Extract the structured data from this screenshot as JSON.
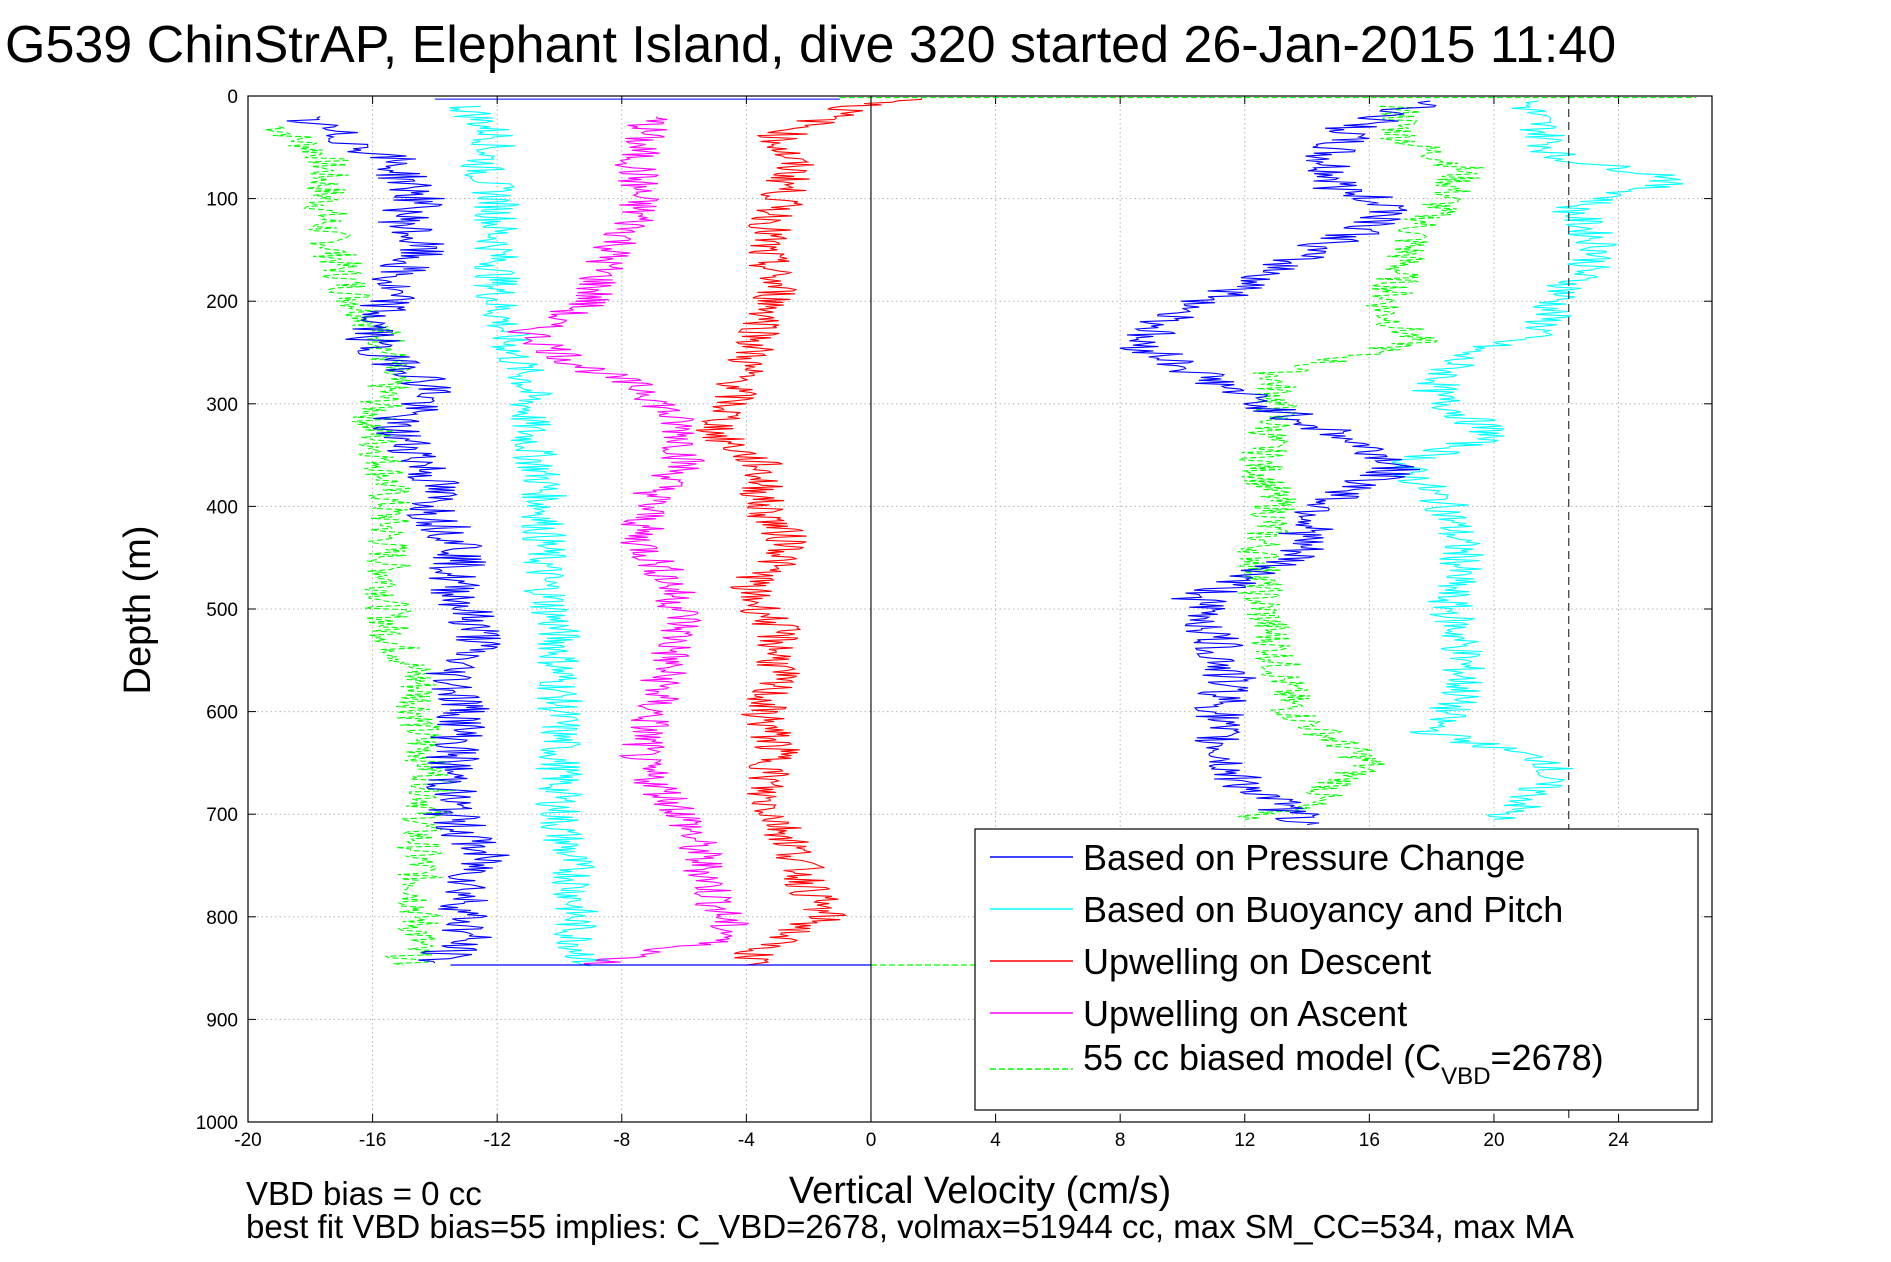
{
  "chart_data": {
    "type": "line",
    "title": "G539 ChinStrAP, Elephant Island, dive 320 started 26-Jan-2015 11:40",
    "xlabel": "Vertical Velocity (cm/s)",
    "ylabel": "Depth (m)",
    "xlim": [
      -20,
      27
    ],
    "ylim": [
      0,
      1000
    ],
    "y_reversed": true,
    "grid": true,
    "x_ticks": [
      "-20",
      "-16",
      "-12",
      "-8",
      "-4",
      "0",
      "4",
      "8",
      "12",
      "16",
      "20",
      "24"
    ],
    "y_ticks": [
      "0",
      "100",
      "200",
      "300",
      "400",
      "500",
      "600",
      "700",
      "800",
      "900",
      "1000"
    ],
    "legend_position": "bottom-right",
    "legend_sub_prefix": "55 cc biased model (C",
    "legend_sub_script": "VBD",
    "legend_sub_suffix": "=2678)",
    "reference_lines": {
      "solid_x": 0,
      "dashed_x": 22.4
    },
    "footer_line1": "VBD bias = 0 cc",
    "footer_line2": "best fit VBD bias=55 implies: C_VBD=2678, volmax=51944 cc, max SM_CC=534, max MA",
    "series": [
      {
        "name": "Based on Pressure Change",
        "color": "#0000ff",
        "style": "solid",
        "descent": [
          [
            -18.5,
            20
          ],
          [
            -17,
            40
          ],
          [
            -15.5,
            60
          ],
          [
            -15,
            80
          ],
          [
            -14.5,
            100
          ],
          [
            -15,
            120
          ],
          [
            -14.5,
            150
          ],
          [
            -15.5,
            180
          ],
          [
            -15.5,
            200
          ],
          [
            -16,
            220
          ],
          [
            -16,
            250
          ],
          [
            -14.5,
            270
          ],
          [
            -14,
            290
          ],
          [
            -15.5,
            320
          ],
          [
            -14.5,
            350
          ],
          [
            -14,
            380
          ],
          [
            -14,
            410
          ],
          [
            -13,
            440
          ],
          [
            -13.5,
            470
          ],
          [
            -13,
            500
          ],
          [
            -12.5,
            530
          ],
          [
            -13.5,
            560
          ],
          [
            -13,
            600
          ],
          [
            -13.5,
            650
          ],
          [
            -13.5,
            700
          ],
          [
            -12.5,
            740
          ],
          [
            -13,
            780
          ],
          [
            -13,
            820
          ],
          [
            -14,
            845
          ]
        ],
        "ascent": [
          [
            18,
            5
          ],
          [
            15.5,
            30
          ],
          [
            14.5,
            60
          ],
          [
            15,
            90
          ],
          [
            17,
            110
          ],
          [
            16,
            130
          ],
          [
            14,
            150
          ],
          [
            12.5,
            180
          ],
          [
            10,
            210
          ],
          [
            8.5,
            240
          ],
          [
            10.5,
            270
          ],
          [
            12.5,
            300
          ],
          [
            15,
            330
          ],
          [
            17,
            360
          ],
          [
            14.5,
            400
          ],
          [
            13.5,
            450
          ],
          [
            10.5,
            490
          ],
          [
            11,
            530
          ],
          [
            11.5,
            570
          ],
          [
            11,
            620
          ],
          [
            11.5,
            660
          ],
          [
            13,
            690
          ],
          [
            14,
            710
          ]
        ]
      },
      {
        "name": "Based on Buoyancy and Pitch",
        "color": "#00ffff",
        "style": "solid",
        "descent": [
          [
            -13,
            10
          ],
          [
            -12,
            40
          ],
          [
            -12.5,
            70
          ],
          [
            -12,
            100
          ],
          [
            -12,
            150
          ],
          [
            -12,
            200
          ],
          [
            -11.5,
            250
          ],
          [
            -11,
            280
          ],
          [
            -11,
            330
          ],
          [
            -10.5,
            380
          ],
          [
            -10.5,
            420
          ],
          [
            -10.5,
            470
          ],
          [
            -10,
            530
          ],
          [
            -10,
            580
          ],
          [
            -10,
            650
          ],
          [
            -10,
            710
          ],
          [
            -9.5,
            760
          ],
          [
            -9.5,
            820
          ],
          [
            -9,
            848
          ]
        ],
        "ascent": [
          [
            21,
            5
          ],
          [
            21.5,
            30
          ],
          [
            22,
            60
          ],
          [
            26,
            80
          ],
          [
            22.5,
            110
          ],
          [
            23.5,
            150
          ],
          [
            22,
            200
          ],
          [
            21.5,
            230
          ],
          [
            19,
            250
          ],
          [
            18,
            290
          ],
          [
            20,
            330
          ],
          [
            17,
            360
          ],
          [
            18.5,
            400
          ],
          [
            19,
            450
          ],
          [
            18.5,
            490
          ],
          [
            19,
            540
          ],
          [
            19,
            580
          ],
          [
            18,
            620
          ],
          [
            22,
            650
          ],
          [
            21,
            690
          ],
          [
            20,
            705
          ]
        ]
      },
      {
        "name": "Upwelling on Descent",
        "color": "#ff0000",
        "style": "solid",
        "descent": [
          [
            2,
            2
          ],
          [
            -0.5,
            10
          ],
          [
            -3,
            40
          ],
          [
            -2.5,
            70
          ],
          [
            -3,
            110
          ],
          [
            -3.5,
            150
          ],
          [
            -3,
            190
          ],
          [
            -3.5,
            230
          ],
          [
            -4,
            260
          ],
          [
            -4.5,
            300
          ],
          [
            -5,
            330
          ],
          [
            -3.5,
            360
          ],
          [
            -3.5,
            400
          ],
          [
            -2.5,
            440
          ],
          [
            -4,
            480
          ],
          [
            -3,
            520
          ],
          [
            -3,
            560
          ],
          [
            -3.5,
            600
          ],
          [
            -3,
            640
          ],
          [
            -3.5,
            680
          ],
          [
            -2.5,
            730
          ],
          [
            -2,
            770
          ],
          [
            -1.5,
            800
          ],
          [
            -3.5,
            830
          ],
          [
            -4,
            847
          ]
        ]
      },
      {
        "name": "Upwelling on Ascent",
        "color": "#ff00ff",
        "style": "solid",
        "descent": [
          [
            -7,
            20
          ],
          [
            -7.5,
            50
          ],
          [
            -7.5,
            80
          ],
          [
            -7.5,
            120
          ],
          [
            -8.5,
            160
          ],
          [
            -9,
            200
          ],
          [
            -11,
            230
          ],
          [
            -9.5,
            260
          ],
          [
            -7,
            290
          ],
          [
            -6,
            330
          ],
          [
            -6,
            360
          ],
          [
            -7,
            390
          ],
          [
            -7.5,
            430
          ],
          [
            -6.5,
            470
          ],
          [
            -6,
            510
          ],
          [
            -6.5,
            550
          ],
          [
            -7,
            600
          ],
          [
            -7.5,
            650
          ],
          [
            -6,
            700
          ],
          [
            -5.5,
            740
          ],
          [
            -5,
            780
          ],
          [
            -4.5,
            820
          ],
          [
            -9,
            847
          ]
        ]
      },
      {
        "name": "55 cc biased model",
        "color": "#00ff00",
        "style": "dashed",
        "descent": [
          [
            -19,
            30
          ],
          [
            -17.5,
            60
          ],
          [
            -17.5,
            90
          ],
          [
            -17.5,
            130
          ],
          [
            -17,
            170
          ],
          [
            -16.5,
            200
          ],
          [
            -15.5,
            240
          ],
          [
            -15.5,
            280
          ],
          [
            -16,
            320
          ],
          [
            -15.5,
            370
          ],
          [
            -15.5,
            420
          ],
          [
            -15.5,
            470
          ],
          [
            -15.5,
            520
          ],
          [
            -14.5,
            570
          ],
          [
            -14.5,
            620
          ],
          [
            -14,
            670
          ],
          [
            -14.5,
            720
          ],
          [
            -14.5,
            770
          ],
          [
            -14.5,
            820
          ],
          [
            -15,
            847
          ]
        ],
        "ascent": [
          [
            17,
            10
          ],
          [
            17,
            40
          ],
          [
            19,
            70
          ],
          [
            18.5,
            100
          ],
          [
            17.5,
            130
          ],
          [
            17,
            170
          ],
          [
            16.5,
            210
          ],
          [
            17.5,
            240
          ],
          [
            13,
            270
          ],
          [
            13,
            310
          ],
          [
            12.5,
            360
          ],
          [
            13,
            400
          ],
          [
            12.5,
            440
          ],
          [
            12.5,
            490
          ],
          [
            13,
            540
          ],
          [
            13.5,
            600
          ],
          [
            16,
            650
          ],
          [
            14,
            690
          ],
          [
            12,
            705
          ]
        ]
      }
    ]
  }
}
